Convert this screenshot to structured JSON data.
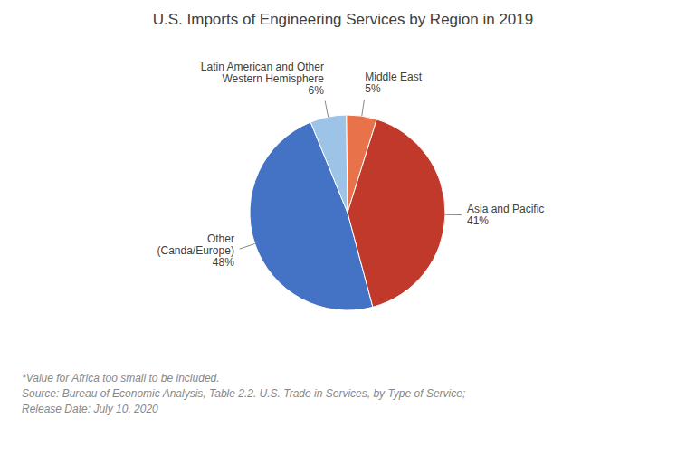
{
  "chart_data": {
    "type": "pie",
    "title": "U.S. Imports of Engineering Services by Region in 2019",
    "categories": [
      "Other\n(Canda/Europe)",
      "Latin American and Other\nWestern Hemisphere",
      "Middle East",
      "Asia and Pacific"
    ],
    "values": [
      48,
      6,
      5,
      41
    ],
    "value_labels": [
      "48%",
      "6%",
      "5%",
      "41%"
    ],
    "colors": [
      "#4472C4",
      "#9DC3E6",
      "#E8734A",
      "#C0392B"
    ],
    "data_labels": true,
    "annotations": [
      "*Value for Africa too small to be included.",
      "Source: Bureau of Economic Analysis, Table 2.2. U.S. Trade in Services, by Type of Service;",
      "Release Date: July 10, 2020"
    ]
  }
}
